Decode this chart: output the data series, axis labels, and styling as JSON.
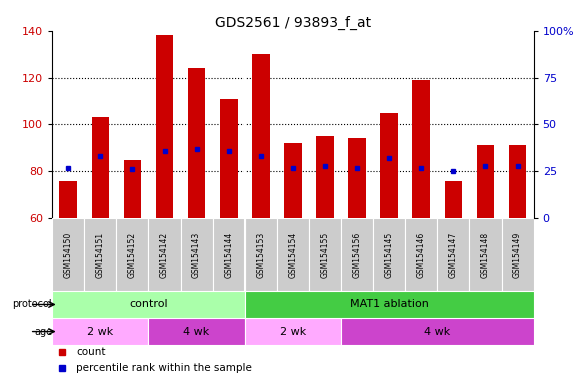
{
  "title": "GDS2561 / 93893_f_at",
  "samples": [
    "GSM154150",
    "GSM154151",
    "GSM154152",
    "GSM154142",
    "GSM154143",
    "GSM154144",
    "GSM154153",
    "GSM154154",
    "GSM154155",
    "GSM154156",
    "GSM154145",
    "GSM154146",
    "GSM154147",
    "GSM154148",
    "GSM154149"
  ],
  "counts": [
    76,
    103,
    85,
    138,
    124,
    111,
    130,
    92,
    95,
    94,
    105,
    119,
    76,
    91,
    91
  ],
  "percentile_ranks": [
    27,
    33,
    26,
    36,
    37,
    36,
    33,
    27,
    28,
    27,
    32,
    27,
    25,
    28,
    28
  ],
  "bar_color": "#cc0000",
  "dot_color": "#0000cc",
  "ylim_left": [
    60,
    140
  ],
  "ylim_right": [
    0,
    100
  ],
  "yticks_left": [
    60,
    80,
    100,
    120,
    140
  ],
  "yticks_right": [
    0,
    25,
    50,
    75,
    100
  ],
  "ytick_labels_right": [
    "0",
    "25",
    "50",
    "75",
    "100%"
  ],
  "protocol_groups": [
    {
      "label": "control",
      "start": 0,
      "end": 6,
      "color": "#aaeea a"
    },
    {
      "label": "MAT1 ablation",
      "start": 6,
      "end": 15,
      "color": "#44dd44"
    }
  ],
  "age_groups": [
    {
      "label": "2 wk",
      "start": 0,
      "end": 3,
      "color": "#ee99ee"
    },
    {
      "label": "4 wk",
      "start": 3,
      "end": 6,
      "color": "#cc44cc"
    },
    {
      "label": "2 wk",
      "start": 6,
      "end": 9,
      "color": "#ee99ee"
    },
    {
      "label": "4 wk",
      "start": 9,
      "end": 15,
      "color": "#cc44cc"
    }
  ],
  "legend_count_color": "#cc0000",
  "legend_dot_color": "#0000cc",
  "background_color": "#ffffff",
  "chart_bg": "#ffffff",
  "xlabel_bg": "#cccccc",
  "grid_color": "#000000",
  "protocol_label": "protocol",
  "age_label": "age",
  "n_samples": 15,
  "protocol_color_light": "#aaffaa",
  "protocol_color_dark": "#44cc44",
  "age_color_light": "#ffaaff",
  "age_color_dark": "#cc44cc"
}
